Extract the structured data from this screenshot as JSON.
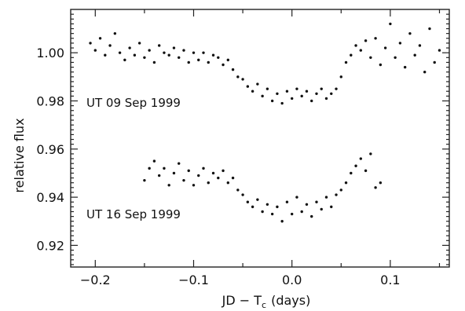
{
  "chart_data": {
    "type": "scatter",
    "title": "",
    "xlabel": "JD − T",
    "xlabel_subscript": "c",
    "xlabel_unit": "(days)",
    "ylabel": "relative flux",
    "xlim": [
      -0.225,
      0.16
    ],
    "ylim": [
      0.911,
      1.018
    ],
    "x_ticks": [
      -0.2,
      -0.1,
      0.0,
      0.1
    ],
    "x_tick_labels": [
      "−0.2",
      "−0.1",
      "0.0",
      "0.1"
    ],
    "x_minor_ticks": [
      -0.15,
      -0.05,
      0.05,
      0.15
    ],
    "y_ticks": [
      0.92,
      0.94,
      0.96,
      0.98,
      1.0
    ],
    "y_tick_labels": [
      "0.92",
      "0.94",
      "0.96",
      "0.98",
      "1.00"
    ],
    "grid": false,
    "legend": "none",
    "series": [
      {
        "label": "UT 09 Sep 1999",
        "x_range": [
          -0.21,
          0.15
        ],
        "points": [
          [
            -0.205,
            1.004
          ],
          [
            -0.2,
            1.001
          ],
          [
            -0.195,
            1.006
          ],
          [
            -0.19,
            0.999
          ],
          [
            -0.185,
            1.003
          ],
          [
            -0.18,
            1.008
          ],
          [
            -0.175,
            1.0
          ],
          [
            -0.17,
            0.997
          ],
          [
            -0.165,
            1.002
          ],
          [
            -0.16,
            0.999
          ],
          [
            -0.155,
            1.004
          ],
          [
            -0.15,
            0.998
          ],
          [
            -0.145,
            1.001
          ],
          [
            -0.14,
            0.996
          ],
          [
            -0.135,
            1.003
          ],
          [
            -0.13,
            1.0
          ],
          [
            -0.125,
            0.999
          ],
          [
            -0.12,
            1.002
          ],
          [
            -0.115,
            0.998
          ],
          [
            -0.11,
            1.001
          ],
          [
            -0.105,
            0.996
          ],
          [
            -0.1,
            1.0
          ],
          [
            -0.095,
            0.997
          ],
          [
            -0.09,
            1.0
          ],
          [
            -0.085,
            0.996
          ],
          [
            -0.08,
            0.999
          ],
          [
            -0.075,
            0.998
          ],
          [
            -0.07,
            0.995
          ],
          [
            -0.065,
            0.997
          ],
          [
            -0.06,
            0.993
          ],
          [
            -0.055,
            0.99
          ],
          [
            -0.05,
            0.989
          ],
          [
            -0.045,
            0.986
          ],
          [
            -0.04,
            0.984
          ],
          [
            -0.035,
            0.987
          ],
          [
            -0.03,
            0.982
          ],
          [
            -0.025,
            0.985
          ],
          [
            -0.02,
            0.98
          ],
          [
            -0.015,
            0.983
          ],
          [
            -0.01,
            0.979
          ],
          [
            -0.005,
            0.984
          ],
          [
            0.0,
            0.981
          ],
          [
            0.005,
            0.985
          ],
          [
            0.01,
            0.982
          ],
          [
            0.015,
            0.984
          ],
          [
            0.02,
            0.98
          ],
          [
            0.025,
            0.983
          ],
          [
            0.03,
            0.985
          ],
          [
            0.035,
            0.981
          ],
          [
            0.04,
            0.983
          ],
          [
            0.045,
            0.985
          ],
          [
            0.05,
            0.99
          ],
          [
            0.055,
            0.996
          ],
          [
            0.06,
            0.999
          ],
          [
            0.065,
            1.003
          ],
          [
            0.07,
            1.001
          ],
          [
            0.075,
            1.005
          ],
          [
            0.08,
            0.998
          ],
          [
            0.085,
            1.006
          ],
          [
            0.09,
            0.995
          ],
          [
            0.095,
            1.002
          ],
          [
            0.1,
            1.012
          ],
          [
            0.105,
            0.998
          ],
          [
            0.11,
            1.004
          ],
          [
            0.115,
            0.994
          ],
          [
            0.12,
            1.008
          ],
          [
            0.125,
            0.999
          ],
          [
            0.13,
            1.003
          ],
          [
            0.135,
            0.992
          ],
          [
            0.14,
            1.01
          ],
          [
            0.145,
            0.996
          ],
          [
            0.15,
            1.001
          ]
        ]
      },
      {
        "label": "UT 16 Sep 1999",
        "x_range": [
          -0.15,
          0.09
        ],
        "points": [
          [
            -0.15,
            0.947
          ],
          [
            -0.145,
            0.952
          ],
          [
            -0.14,
            0.955
          ],
          [
            -0.135,
            0.949
          ],
          [
            -0.13,
            0.952
          ],
          [
            -0.125,
            0.945
          ],
          [
            -0.12,
            0.95
          ],
          [
            -0.115,
            0.954
          ],
          [
            -0.11,
            0.947
          ],
          [
            -0.105,
            0.951
          ],
          [
            -0.1,
            0.945
          ],
          [
            -0.095,
            0.949
          ],
          [
            -0.09,
            0.952
          ],
          [
            -0.085,
            0.946
          ],
          [
            -0.08,
            0.95
          ],
          [
            -0.075,
            0.948
          ],
          [
            -0.07,
            0.951
          ],
          [
            -0.065,
            0.946
          ],
          [
            -0.06,
            0.948
          ],
          [
            -0.055,
            0.943
          ],
          [
            -0.05,
            0.941
          ],
          [
            -0.045,
            0.938
          ],
          [
            -0.04,
            0.936
          ],
          [
            -0.035,
            0.939
          ],
          [
            -0.03,
            0.934
          ],
          [
            -0.025,
            0.937
          ],
          [
            -0.02,
            0.933
          ],
          [
            -0.015,
            0.936
          ],
          [
            -0.01,
            0.93
          ],
          [
            -0.005,
            0.938
          ],
          [
            0.0,
            0.933
          ],
          [
            0.005,
            0.94
          ],
          [
            0.01,
            0.934
          ],
          [
            0.015,
            0.937
          ],
          [
            0.02,
            0.932
          ],
          [
            0.025,
            0.938
          ],
          [
            0.03,
            0.935
          ],
          [
            0.035,
            0.94
          ],
          [
            0.04,
            0.936
          ],
          [
            0.045,
            0.941
          ],
          [
            0.05,
            0.943
          ],
          [
            0.055,
            0.946
          ],
          [
            0.06,
            0.95
          ],
          [
            0.065,
            0.953
          ],
          [
            0.07,
            0.956
          ],
          [
            0.075,
            0.951
          ],
          [
            0.08,
            0.958
          ],
          [
            0.085,
            0.944
          ],
          [
            0.09,
            0.946
          ]
        ]
      }
    ]
  }
}
